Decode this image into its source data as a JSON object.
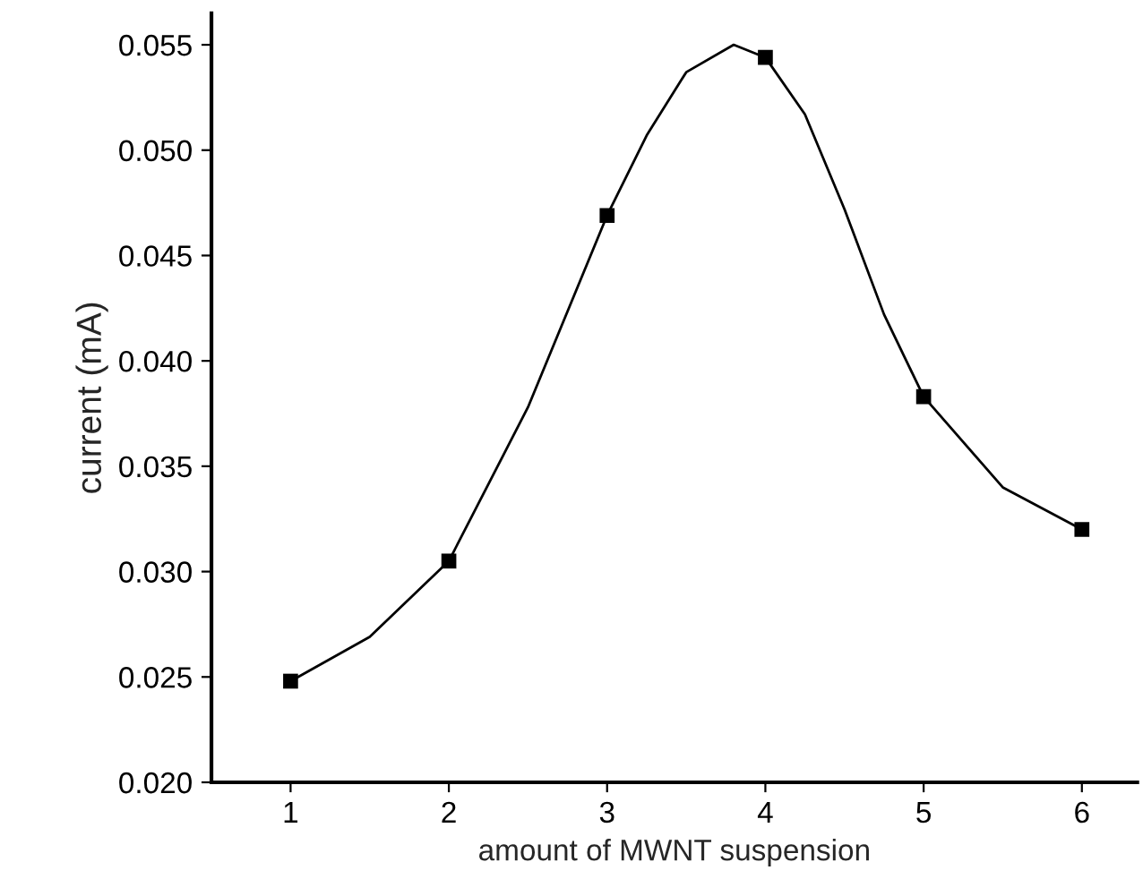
{
  "chart_data": {
    "type": "line",
    "xlabel": "amount of MWNT suspension",
    "ylabel": "current (mA)",
    "x": [
      1,
      2,
      3,
      4,
      5,
      6
    ],
    "series": [
      {
        "type": "scatter",
        "color": "#000000",
        "marker": "square",
        "values": [
          0.0248,
          0.0305,
          0.0469,
          0.0544,
          0.0383,
          0.032
        ]
      },
      {
        "color": "#000000",
        "marker": "none",
        "line_style": "solid",
        "x": [
          1,
          1.5,
          2,
          2.5,
          3,
          3.25,
          3.5,
          3.8,
          4,
          4.25,
          4.5,
          4.75,
          5,
          5.5,
          6
        ],
        "values": [
          0.0248,
          0.0269,
          0.0305,
          0.0378,
          0.0469,
          0.0507,
          0.0537,
          0.055,
          0.0544,
          0.0517,
          0.0472,
          0.0422,
          0.0383,
          0.034,
          0.032
        ]
      }
    ],
    "xlim": [
      0.5,
      6.35
    ],
    "xticks": [
      1,
      2,
      3,
      4,
      5,
      6
    ],
    "ylim": [
      0.02,
      0.0565
    ],
    "yticks": [
      {
        "value": 0.02,
        "label": "0.020"
      },
      {
        "value": 0.025,
        "label": "0.025"
      },
      {
        "value": 0.03,
        "label": "0.030"
      },
      {
        "value": 0.035,
        "label": "0.035"
      },
      {
        "value": 0.04,
        "label": "0.040"
      },
      {
        "value": 0.045,
        "label": "0.045"
      },
      {
        "value": 0.05,
        "label": "0.050"
      },
      {
        "value": 0.055,
        "label": "0.055"
      }
    ],
    "grid": false,
    "legend": false
  }
}
